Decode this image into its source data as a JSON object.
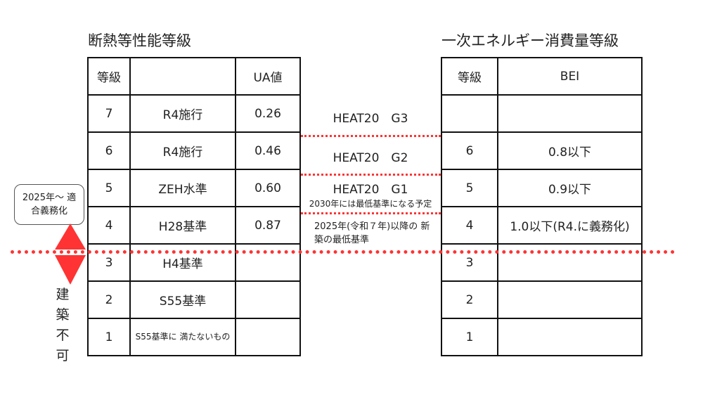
{
  "left_table": {
    "title": "断熱等性能等級",
    "headers": [
      "等級",
      "",
      "UA値"
    ],
    "rows": [
      {
        "grade": "7",
        "name": "R4施行",
        "ua": "0.26"
      },
      {
        "grade": "6",
        "name": "R4施行",
        "ua": "0.46"
      },
      {
        "grade": "5",
        "name": "ZEH水準",
        "ua": "0.60"
      },
      {
        "grade": "4",
        "name": "H28基準",
        "ua": "0.87"
      },
      {
        "grade": "3",
        "name": "H4基準",
        "ua": ""
      },
      {
        "grade": "2",
        "name": "S55基準",
        "ua": ""
      },
      {
        "grade": "1",
        "name": "S55基準に 満たないもの",
        "ua": ""
      }
    ]
  },
  "right_table": {
    "title": "一次エネルギー消費量等級",
    "headers": [
      "等級",
      "BEI"
    ],
    "rows": [
      {
        "grade": "",
        "bei": ""
      },
      {
        "grade": "6",
        "bei": "0.8以下"
      },
      {
        "grade": "5",
        "bei": "0.9以下"
      },
      {
        "grade": "4",
        "bei": "1.0以下(R4.に義務化)"
      },
      {
        "grade": "3",
        "bei": ""
      },
      {
        "grade": "2",
        "bei": ""
      },
      {
        "grade": "1",
        "bei": ""
      }
    ]
  },
  "middle": {
    "g3": "HEAT20　G3",
    "g2": "HEAT20　G2",
    "g1": "HEAT20　G1",
    "g1_note": "2030年には最低基準になる予定",
    "grade4_note": "2025年(令和７年)以降の 新築の最低基準"
  },
  "callout": {
    "text": "2025年〜 適合義務化"
  },
  "not_buildable": "建築不可",
  "colors": {
    "accent_red": "#ff3333",
    "border": "#111111"
  }
}
